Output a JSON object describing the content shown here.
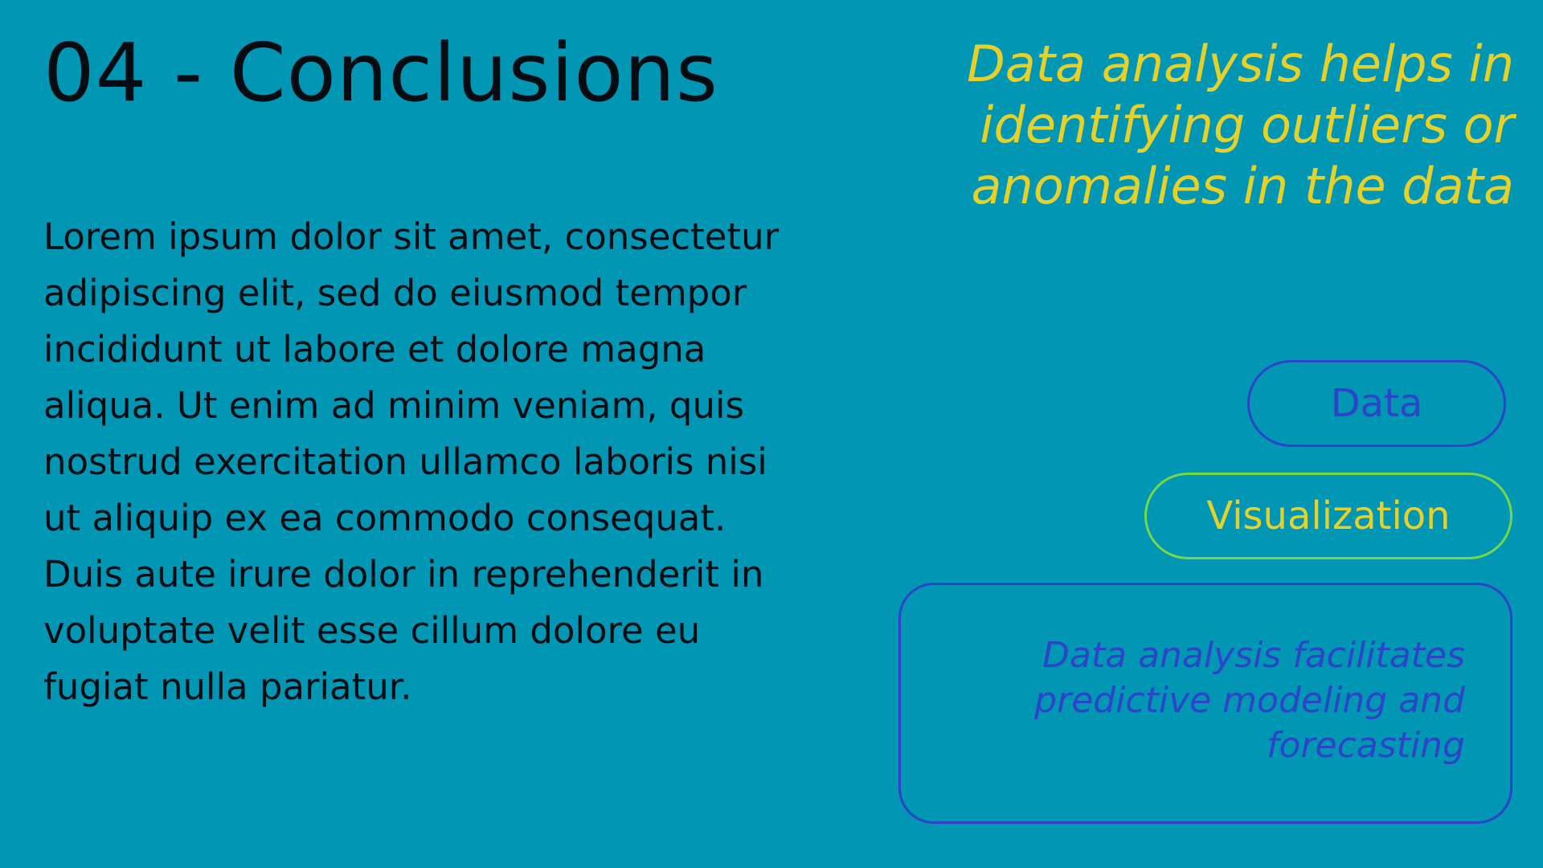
{
  "slide": {
    "title": "04 - Conclusions",
    "body": "Lorem ipsum dolor sit amet, consectetur adipiscing elit, sed do eiusmod tempor incididunt ut labore et dolore magna aliqua. Ut enim ad minim veniam, quis nostrud exercitation ullamco laboris nisi ut aliquip ex ea commodo consequat. Duis aute irure dolor in reprehenderit in voluptate velit esse cillum dolore eu fugiat nulla pariatur.",
    "highlight": "Data analysis helps in identifying outliers or anomalies in the data",
    "tags": {
      "data": "Data",
      "visualization": "Visualization"
    },
    "callout": "Data analysis facilitates predictive modeling and forecasting"
  },
  "colors": {
    "background": "#0096b4",
    "text_dark": "#060d12",
    "accent_yellow": "#e6d12a",
    "accent_blue": "#2c45c8",
    "accent_green": "#74d84a"
  }
}
